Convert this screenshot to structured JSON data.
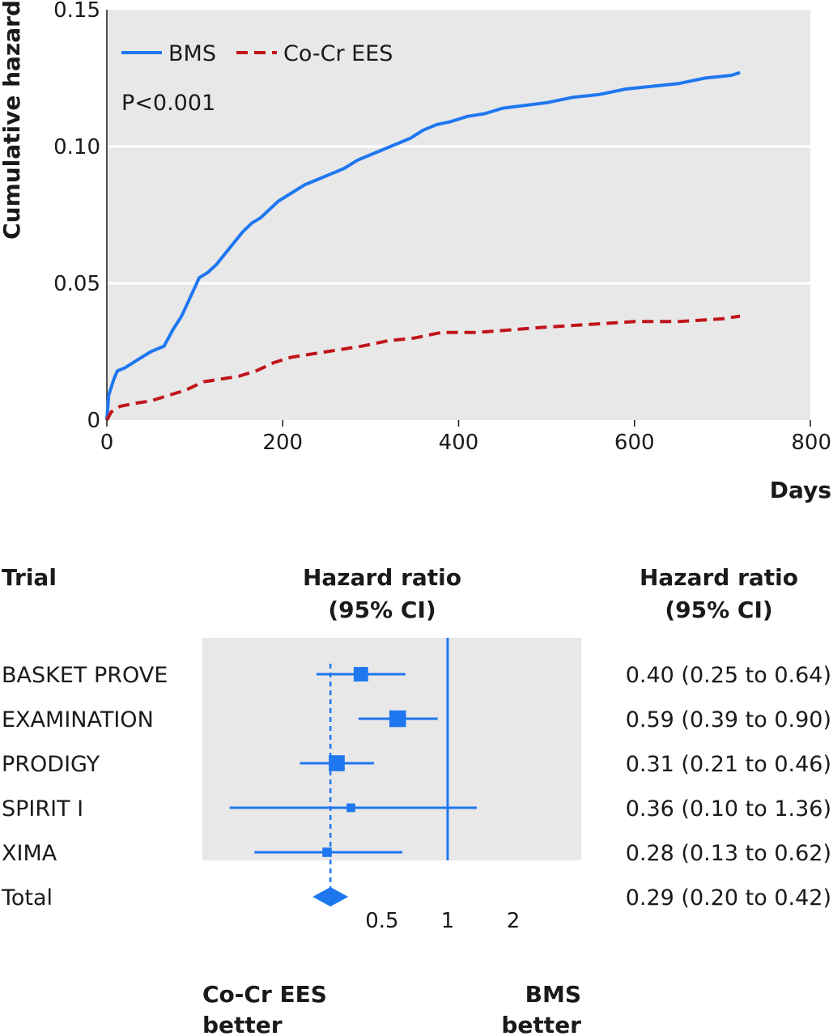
{
  "chart_data": [
    {
      "type": "line",
      "title": "",
      "xlabel": "Days",
      "ylabel": "Cumulative hazard",
      "xlim": [
        0,
        800
      ],
      "ylim": [
        0,
        0.15
      ],
      "x_ticks": [
        "0",
        "200",
        "400",
        "600",
        "800"
      ],
      "y_ticks": [
        "0",
        "0.05",
        "0.10",
        "0.15"
      ],
      "y_tick_values": [
        0,
        0.05,
        0.1,
        0.15
      ],
      "x_tick_values": [
        0,
        200,
        400,
        600,
        800
      ],
      "grid": true,
      "legend_position": "top-left",
      "annotation": "P<0.001",
      "series": [
        {
          "name": "BMS",
          "color": "#1f77f0",
          "style": "solid",
          "points": [
            [
              0,
              0
            ],
            [
              2,
              0.009
            ],
            [
              8,
              0.015
            ],
            [
              12,
              0.018
            ],
            [
              20,
              0.019
            ],
            [
              35,
              0.022
            ],
            [
              50,
              0.025
            ],
            [
              65,
              0.027
            ],
            [
              75,
              0.033
            ],
            [
              85,
              0.038
            ],
            [
              95,
              0.045
            ],
            [
              105,
              0.052
            ],
            [
              115,
              0.054
            ],
            [
              125,
              0.057
            ],
            [
              135,
              0.061
            ],
            [
              145,
              0.065
            ],
            [
              155,
              0.069
            ],
            [
              165,
              0.072
            ],
            [
              175,
              0.074
            ],
            [
              185,
              0.077
            ],
            [
              195,
              0.08
            ],
            [
              210,
              0.083
            ],
            [
              225,
              0.086
            ],
            [
              240,
              0.088
            ],
            [
              255,
              0.09
            ],
            [
              270,
              0.092
            ],
            [
              285,
              0.095
            ],
            [
              300,
              0.097
            ],
            [
              315,
              0.099
            ],
            [
              330,
              0.101
            ],
            [
              345,
              0.103
            ],
            [
              360,
              0.106
            ],
            [
              375,
              0.108
            ],
            [
              390,
              0.109
            ],
            [
              410,
              0.111
            ],
            [
              430,
              0.112
            ],
            [
              450,
              0.114
            ],
            [
              475,
              0.115
            ],
            [
              500,
              0.116
            ],
            [
              530,
              0.118
            ],
            [
              560,
              0.119
            ],
            [
              590,
              0.121
            ],
            [
              620,
              0.122
            ],
            [
              650,
              0.123
            ],
            [
              680,
              0.125
            ],
            [
              710,
              0.126
            ],
            [
              720,
              0.127
            ]
          ]
        },
        {
          "name": "Co-Cr EES",
          "color": "#c0141b",
          "style": "dashed",
          "points": [
            [
              0,
              0
            ],
            [
              5,
              0.003
            ],
            [
              15,
              0.005
            ],
            [
              30,
              0.006
            ],
            [
              50,
              0.007
            ],
            [
              70,
              0.009
            ],
            [
              90,
              0.011
            ],
            [
              110,
              0.014
            ],
            [
              130,
              0.015
            ],
            [
              150,
              0.016
            ],
            [
              170,
              0.018
            ],
            [
              190,
              0.021
            ],
            [
              210,
              0.023
            ],
            [
              230,
              0.024
            ],
            [
              250,
              0.025
            ],
            [
              270,
              0.026
            ],
            [
              290,
              0.027
            ],
            [
              320,
              0.029
            ],
            [
              350,
              0.03
            ],
            [
              380,
              0.032
            ],
            [
              420,
              0.032
            ],
            [
              460,
              0.033
            ],
            [
              500,
              0.034
            ],
            [
              550,
              0.035
            ],
            [
              600,
              0.036
            ],
            [
              650,
              0.036
            ],
            [
              700,
              0.037
            ],
            [
              720,
              0.038
            ]
          ]
        }
      ]
    },
    {
      "type": "forest",
      "title": "",
      "x_scale": "log",
      "x_ticks": [
        "0.5",
        "1",
        "2"
      ],
      "x_tick_values": [
        0.5,
        1,
        2
      ],
      "xlim": [
        0.075,
        4.1
      ],
      "headers": {
        "trial": "Trial",
        "hr_line1": "Hazard ratio",
        "hr_line2": "(95% CI)",
        "col_line1": "Hazard ratio",
        "col_line2": "(95% CI)"
      },
      "left_label": [
        "Co-Cr EES",
        "better"
      ],
      "right_label": [
        "BMS",
        "better"
      ],
      "pooled_estimate": 0.29,
      "rows": [
        {
          "trial": "BASKET PROVE",
          "hr": 0.4,
          "lo": 0.25,
          "hi": 0.64,
          "weight": 0.55,
          "text": "0.40 (0.25 to 0.64)"
        },
        {
          "trial": "EXAMINATION",
          "hr": 0.59,
          "lo": 0.39,
          "hi": 0.9,
          "weight": 0.7,
          "text": "0.59 (0.39 to 0.90)"
        },
        {
          "trial": "PRODIGY",
          "hr": 0.31,
          "lo": 0.21,
          "hi": 0.46,
          "weight": 0.65,
          "text": "0.31 (0.21 to 0.46)"
        },
        {
          "trial": "SPIRIT I",
          "hr": 0.36,
          "lo": 0.1,
          "hi": 1.36,
          "weight": 0.15,
          "text": "0.36 (0.10 to 1.36)"
        },
        {
          "trial": "XIMA",
          "hr": 0.28,
          "lo": 0.13,
          "hi": 0.62,
          "weight": 0.2,
          "text": "0.28 (0.13 to 0.62)"
        }
      ],
      "total": {
        "trial": "Total",
        "hr": 0.29,
        "lo": 0.2,
        "hi": 0.42,
        "text": "0.29 (0.20 to 0.42)"
      },
      "colors": {
        "marker": "#1f77f0",
        "panel_bg": "#e8e8e8"
      }
    }
  ]
}
